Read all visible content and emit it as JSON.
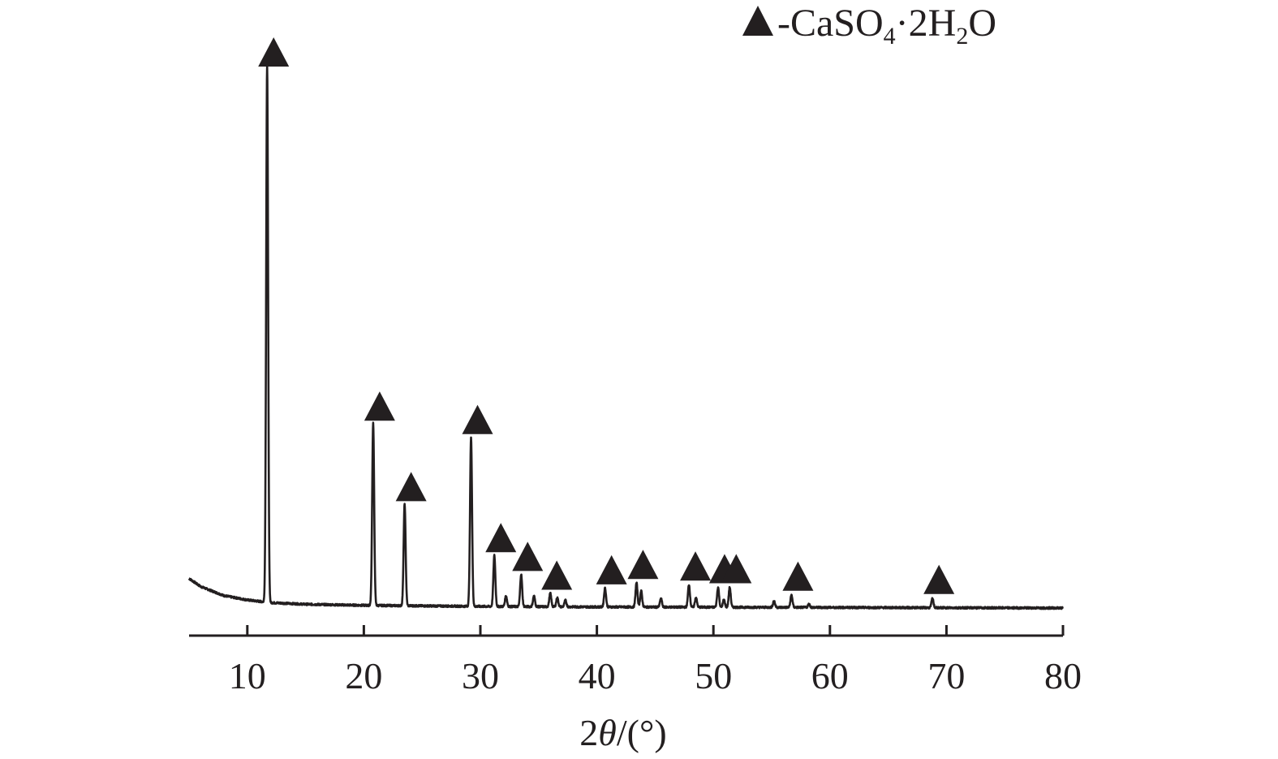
{
  "chart_data": {
    "type": "line",
    "xlabel_parts": [
      "2",
      "θ",
      "/(°)"
    ],
    "xlim": [
      5,
      80
    ],
    "x_ticks": [
      10,
      20,
      30,
      40,
      50,
      60,
      70,
      80
    ],
    "y_axis_shown": false,
    "grid": false,
    "legend": {
      "position": "top-right",
      "marker": "filled-triangle",
      "label_parts": [
        "-CaSO",
        "4",
        "·2H",
        "2",
        "O"
      ]
    },
    "series": [
      {
        "baseline": {
          "x": [
            5,
            6,
            8,
            10,
            12,
            15,
            20,
            25,
            30,
            40,
            50,
            60,
            70,
            80
          ],
          "y": [
            5.5,
            4.0,
            2.3,
            1.5,
            1.0,
            0.7,
            0.5,
            0.4,
            0.3,
            0.2,
            0.15,
            0.1,
            0.05,
            0.0
          ]
        },
        "peaks": [
          {
            "x": 11.7,
            "y": 100,
            "marked": true
          },
          {
            "x": 20.8,
            "y": 34,
            "marked": true
          },
          {
            "x": 23.5,
            "y": 19,
            "marked": true
          },
          {
            "x": 29.2,
            "y": 31.5,
            "marked": true
          },
          {
            "x": 31.2,
            "y": 9.5,
            "marked": true
          },
          {
            "x": 32.2,
            "y": 2.0,
            "marked": false
          },
          {
            "x": 33.5,
            "y": 6.0,
            "marked": true
          },
          {
            "x": 34.6,
            "y": 2.0,
            "marked": false
          },
          {
            "x": 36.0,
            "y": 2.5,
            "marked": true
          },
          {
            "x": 36.6,
            "y": 1.7,
            "marked": false
          },
          {
            "x": 37.3,
            "y": 1.2,
            "marked": false
          },
          {
            "x": 40.7,
            "y": 3.5,
            "marked": true
          },
          {
            "x": 43.4,
            "y": 4.5,
            "marked": true
          },
          {
            "x": 43.8,
            "y": 3.0,
            "marked": false
          },
          {
            "x": 45.5,
            "y": 1.6,
            "marked": false
          },
          {
            "x": 47.9,
            "y": 4.2,
            "marked": true
          },
          {
            "x": 48.5,
            "y": 1.8,
            "marked": false
          },
          {
            "x": 50.4,
            "y": 3.7,
            "marked": true
          },
          {
            "x": 50.9,
            "y": 1.4,
            "marked": false
          },
          {
            "x": 51.4,
            "y": 3.7,
            "marked": true
          },
          {
            "x": 55.2,
            "y": 1.2,
            "marked": false
          },
          {
            "x": 56.7,
            "y": 2.3,
            "marked": true
          },
          {
            "x": 58.2,
            "y": 0.6,
            "marked": false
          },
          {
            "x": 68.8,
            "y": 1.7,
            "marked": true
          }
        ]
      }
    ],
    "colors": {
      "line": "#231f20",
      "text": "#231f20",
      "marker": "#231f20"
    }
  }
}
